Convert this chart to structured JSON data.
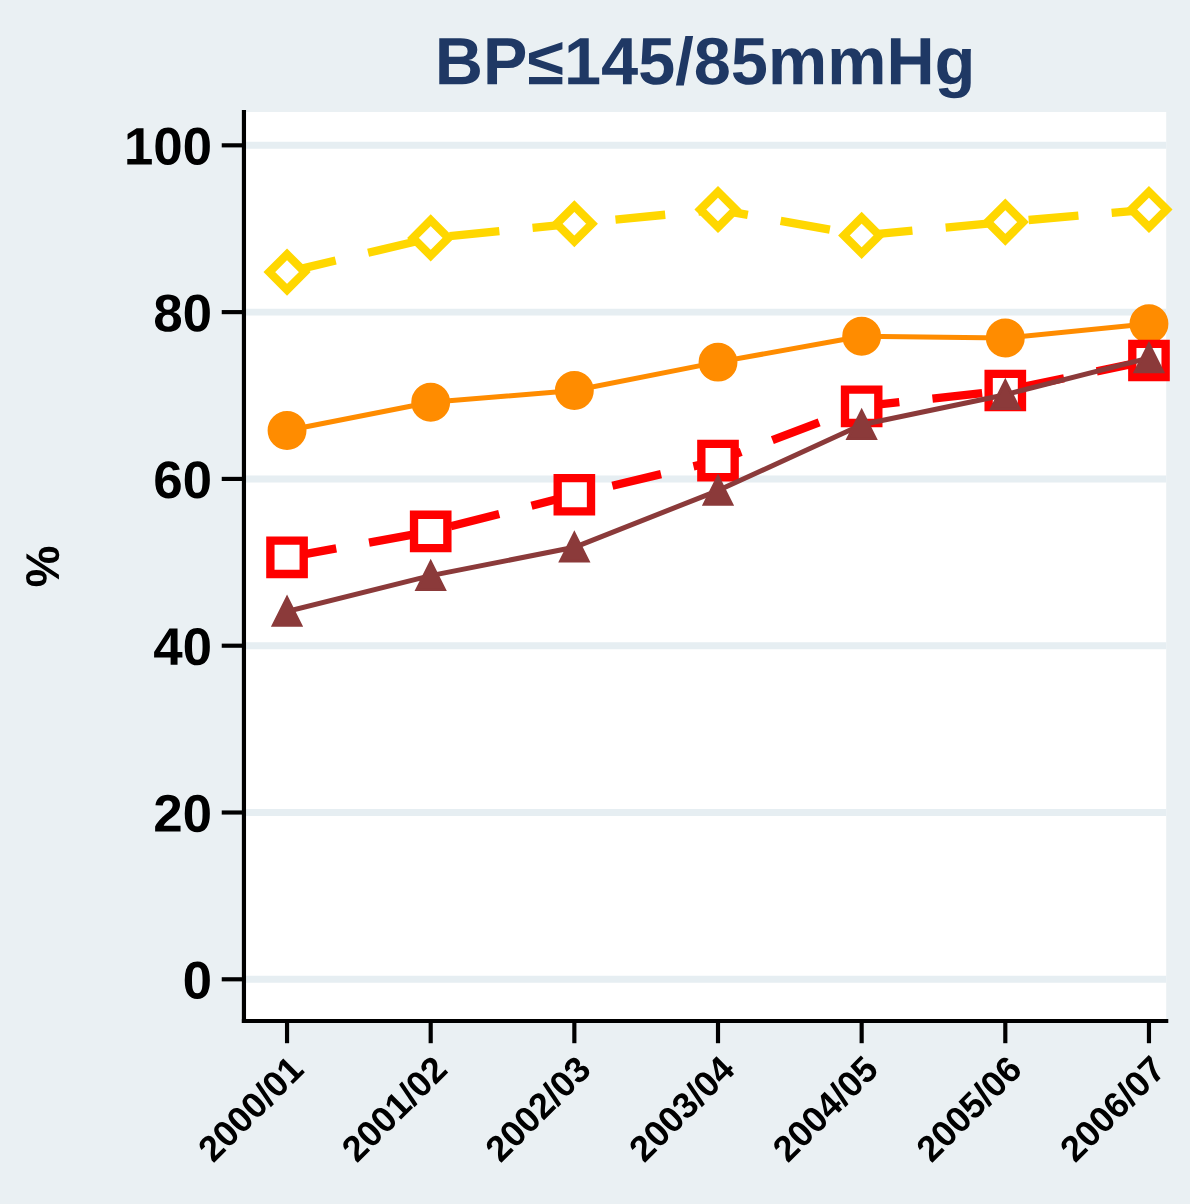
{
  "chart_data": {
    "type": "line",
    "title": "BP≤145/85mmHg",
    "ylabel": "%",
    "categories": [
      "2000/01",
      "2001/02",
      "2002/03",
      "2003/04",
      "2004/05",
      "2005/06",
      "2006/07"
    ],
    "series": [
      {
        "color": "#ffd700",
        "marker": "diamond",
        "line_style": "dashed",
        "values": [
          84.8,
          88.9,
          90.6,
          92.3,
          89.2,
          90.8,
          92.3
        ]
      },
      {
        "color": "#ff8c00",
        "marker": "circle",
        "line_style": "solid",
        "values": [
          65.8,
          69.2,
          70.6,
          74.0,
          77.1,
          76.9,
          78.6
        ]
      },
      {
        "color": "#ff0000",
        "marker": "square",
        "line_style": "dashed",
        "values": [
          50.6,
          53.7,
          58.1,
          62.2,
          68.7,
          70.6,
          74.2
        ]
      },
      {
        "color": "#8b3a3a",
        "marker": "triangle",
        "line_style": "solid",
        "values": [
          44.1,
          48.4,
          51.8,
          58.6,
          66.5,
          70.1,
          74.5
        ]
      }
    ],
    "ylim": [
      -5,
      104
    ],
    "yticks": [
      0,
      20,
      40,
      60,
      80,
      100
    ],
    "grid": "y"
  }
}
